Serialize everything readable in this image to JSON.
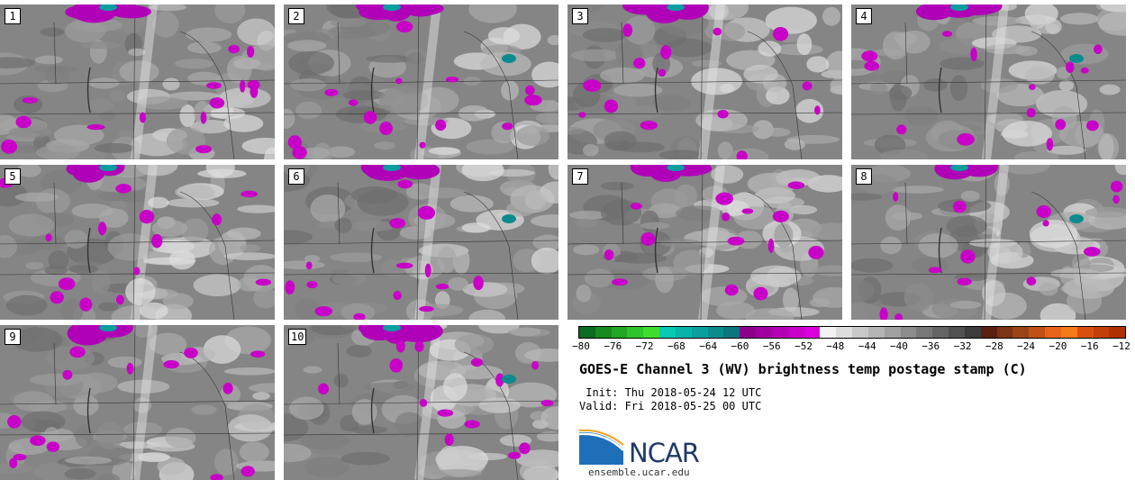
{
  "panels": [
    {
      "label": "1"
    },
    {
      "label": "2"
    },
    {
      "label": "3"
    },
    {
      "label": "4"
    },
    {
      "label": "5"
    },
    {
      "label": "6"
    },
    {
      "label": "7"
    },
    {
      "label": "8"
    },
    {
      "label": "9"
    },
    {
      "label": "10"
    }
  ],
  "colorbar": {
    "colors": [
      "#0b6b1e",
      "#188a1e",
      "#22a822",
      "#2ec42a",
      "#3fdc2e",
      "#06c8b4",
      "#08b3ac",
      "#0a9e9e",
      "#0c8b8e",
      "#0b767d",
      "#8b008b",
      "#a000a0",
      "#b400b4",
      "#c800c8",
      "#dc00dc",
      "#f2f2f2",
      "#dddddd",
      "#c8c8c8",
      "#b4b4b4",
      "#a0a0a0",
      "#8c8c8c",
      "#787878",
      "#646464",
      "#505050",
      "#3c3c3c",
      "#5a2010",
      "#7c3414",
      "#9c4418",
      "#c05014",
      "#e8641a",
      "#f57a18",
      "#d8500e",
      "#c24008",
      "#b03000"
    ],
    "ticks": [
      "−80",
      "−76",
      "−72",
      "−68",
      "−64",
      "−60",
      "−56",
      "−52",
      "−48",
      "−44",
      "−40",
      "−36",
      "−32",
      "−28",
      "−24",
      "−20",
      "−16",
      "−12"
    ],
    "min": -80,
    "max": -12
  },
  "title": "GOES-E Channel 3 (WV) brightness temp postage stamp (C)",
  "init_line": " Init: Thu 2018-05-24 12 UTC",
  "valid_line": "Valid: Fri 2018-05-25 00 UTC",
  "logo_text": "NCAR",
  "logo_url": "ensemble.ucar.edu"
}
